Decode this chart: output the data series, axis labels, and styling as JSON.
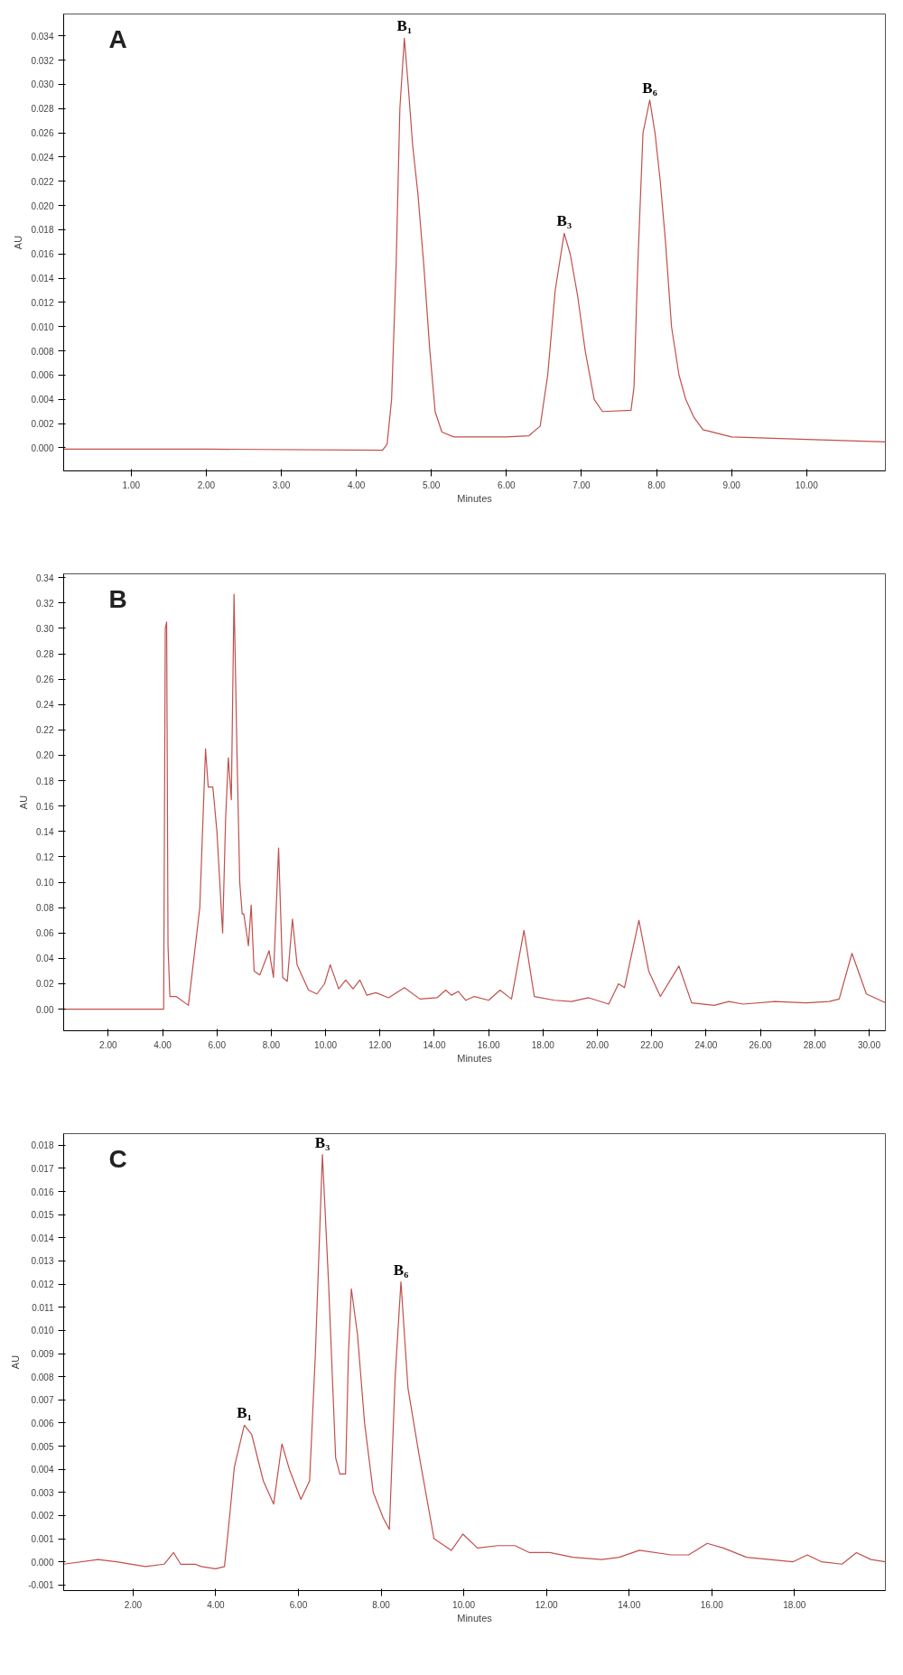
{
  "chart_data": [
    {
      "type": "line",
      "title": "A",
      "xlabel": "Minutes",
      "ylabel": "AU",
      "xlim": [
        0.1,
        11.05
      ],
      "ylim": [
        -0.0019,
        0.0358
      ],
      "xticks": [
        {
          "value": 1,
          "label": "1.00"
        },
        {
          "value": 2,
          "label": "2.00"
        },
        {
          "value": 3,
          "label": "3.00"
        },
        {
          "value": 4,
          "label": "4.00"
        },
        {
          "value": 5,
          "label": "5.00"
        },
        {
          "value": 6,
          "label": "6.00"
        },
        {
          "value": 7,
          "label": "7.00"
        },
        {
          "value": 8,
          "label": "8.00"
        },
        {
          "value": 9,
          "label": "9.00"
        },
        {
          "value": 10,
          "label": "10.00"
        }
      ],
      "yticks": [
        {
          "value": 0,
          "label": "0.000"
        },
        {
          "value": 0.002,
          "label": "0.002"
        },
        {
          "value": 0.004,
          "label": "0.004"
        },
        {
          "value": 0.006,
          "label": "0.006"
        },
        {
          "value": 0.008,
          "label": "0.008"
        },
        {
          "value": 0.01,
          "label": "0.010"
        },
        {
          "value": 0.012,
          "label": "0.012"
        },
        {
          "value": 0.014,
          "label": "0.014"
        },
        {
          "value": 0.016,
          "label": "0.016"
        },
        {
          "value": 0.018,
          "label": "0.018"
        },
        {
          "value": 0.02,
          "label": "0.020"
        },
        {
          "value": 0.022,
          "label": "0.022"
        },
        {
          "value": 0.024,
          "label": "0.024"
        },
        {
          "value": 0.026,
          "label": "0.026"
        },
        {
          "value": 0.028,
          "label": "0.028"
        },
        {
          "value": 0.03,
          "label": "0.030"
        },
        {
          "value": 0.032,
          "label": "0.032"
        },
        {
          "value": 0.034,
          "label": "0.034"
        }
      ],
      "x": [
        0.1,
        2.0,
        4.35,
        4.41,
        4.47,
        4.53,
        4.58,
        4.64,
        4.69,
        4.75,
        4.82,
        4.9,
        4.98,
        5.05,
        5.14,
        5.3,
        6.0,
        6.3,
        6.45,
        6.55,
        6.65,
        6.77,
        6.85,
        6.95,
        7.05,
        7.17,
        7.28,
        7.66,
        7.7,
        7.75,
        7.82,
        7.91,
        7.98,
        8.05,
        8.12,
        8.2,
        8.3,
        8.39,
        8.5,
        8.62,
        9.0,
        10.0,
        11.05
      ],
      "series": [
        {
          "color": "#c0504d",
          "values": [
            -0.0001,
            -0.0001,
            -0.0002,
            0.0003,
            0.004,
            0.015,
            0.028,
            0.0338,
            0.03,
            0.025,
            0.021,
            0.015,
            0.008,
            0.003,
            0.0013,
            0.0009,
            0.0009,
            0.001,
            0.0018,
            0.006,
            0.013,
            0.0177,
            0.016,
            0.0125,
            0.008,
            0.004,
            0.003,
            0.0031,
            0.005,
            0.015,
            0.026,
            0.0287,
            0.026,
            0.022,
            0.017,
            0.01,
            0.006,
            0.004,
            0.0025,
            0.0015,
            0.0009,
            0.0007,
            0.0005
          ]
        }
      ],
      "annotations": [
        {
          "text": "B₁",
          "x": 4.64,
          "y": 0.0338
        },
        {
          "text": "B₃",
          "x": 6.77,
          "y": 0.0177
        },
        {
          "text": "B₆",
          "x": 7.91,
          "y": 0.0287
        }
      ]
    },
    {
      "type": "line",
      "title": "B",
      "xlabel": "Minutes",
      "ylabel": "AU",
      "xlim": [
        0.36,
        30.6
      ],
      "ylim": [
        -0.017,
        0.343
      ],
      "xticks": [
        {
          "value": 2,
          "label": "2.00"
        },
        {
          "value": 4,
          "label": "4.00"
        },
        {
          "value": 6,
          "label": "6.00"
        },
        {
          "value": 8,
          "label": "8.00"
        },
        {
          "value": 10,
          "label": "10.00"
        },
        {
          "value": 12,
          "label": "12.00"
        },
        {
          "value": 14,
          "label": "14.00"
        },
        {
          "value": 16,
          "label": "16.00"
        },
        {
          "value": 18,
          "label": "18.00"
        },
        {
          "value": 20,
          "label": "20.00"
        },
        {
          "value": 22,
          "label": "22.00"
        },
        {
          "value": 24,
          "label": "24.00"
        },
        {
          "value": 26,
          "label": "26.00"
        },
        {
          "value": 28,
          "label": "28.00"
        },
        {
          "value": 30,
          "label": "30.00"
        }
      ],
      "yticks": [
        {
          "value": 0,
          "label": "0.00"
        },
        {
          "value": 0.02,
          "label": "0.02"
        },
        {
          "value": 0.04,
          "label": "0.04"
        },
        {
          "value": 0.06,
          "label": "0.06"
        },
        {
          "value": 0.08,
          "label": "0.08"
        },
        {
          "value": 0.1,
          "label": "0.10"
        },
        {
          "value": 0.12,
          "label": "0.12"
        },
        {
          "value": 0.14,
          "label": "0.14"
        },
        {
          "value": 0.16,
          "label": "0.16"
        },
        {
          "value": 0.18,
          "label": "0.18"
        },
        {
          "value": 0.2,
          "label": "0.20"
        },
        {
          "value": 0.22,
          "label": "0.22"
        },
        {
          "value": 0.24,
          "label": "0.24"
        },
        {
          "value": 0.26,
          "label": "0.26"
        },
        {
          "value": 0.28,
          "label": "0.28"
        },
        {
          "value": 0.3,
          "label": "0.30"
        },
        {
          "value": 0.32,
          "label": "0.32"
        },
        {
          "value": 0.34,
          "label": "0.34"
        }
      ],
      "x": [
        0.36,
        4.04,
        4.1,
        4.15,
        4.2,
        4.27,
        4.5,
        4.95,
        5.37,
        5.58,
        5.68,
        5.85,
        6.0,
        6.21,
        6.32,
        6.42,
        6.53,
        6.63,
        6.74,
        6.84,
        6.93,
        6.99,
        7.16,
        7.26,
        7.37,
        7.58,
        7.92,
        8.08,
        8.27,
        8.42,
        8.59,
        8.78,
        8.95,
        9.37,
        9.68,
        9.96,
        10.17,
        10.48,
        10.74,
        11.01,
        11.26,
        11.52,
        11.85,
        12.32,
        12.9,
        13.47,
        14.1,
        14.42,
        14.63,
        14.88,
        15.16,
        15.47,
        16.0,
        16.42,
        16.84,
        17.3,
        17.68,
        18.42,
        19.05,
        19.68,
        20.42,
        20.78,
        21.0,
        21.53,
        21.89,
        22.32,
        23.0,
        23.47,
        24.3,
        24.84,
        25.37,
        26.53,
        27.68,
        28.53,
        28.9,
        29.37,
        29.9,
        30.6
      ],
      "series": [
        {
          "color": "#c0504d",
          "values": [
            0,
            0,
            0.3,
            0.305,
            0.05,
            0.01,
            0.01,
            0.003,
            0.08,
            0.205,
            0.175,
            0.175,
            0.14,
            0.06,
            0.15,
            0.198,
            0.165,
            0.327,
            0.2,
            0.1,
            0.075,
            0.075,
            0.05,
            0.082,
            0.03,
            0.027,
            0.046,
            0.025,
            0.127,
            0.025,
            0.022,
            0.071,
            0.035,
            0.015,
            0.012,
            0.02,
            0.035,
            0.016,
            0.023,
            0.016,
            0.023,
            0.011,
            0.013,
            0.009,
            0.017,
            0.008,
            0.009,
            0.015,
            0.011,
            0.014,
            0.007,
            0.01,
            0.007,
            0.015,
            0.008,
            0.062,
            0.01,
            0.007,
            0.006,
            0.009,
            0.004,
            0.02,
            0.017,
            0.07,
            0.03,
            0.01,
            0.034,
            0.005,
            0.003,
            0.006,
            0.004,
            0.006,
            0.005,
            0.006,
            0.008,
            0.044,
            0.012,
            0.005
          ]
        }
      ]
    },
    {
      "type": "line",
      "title": "C",
      "xlabel": "Minutes",
      "ylabel": "AU",
      "xlim": [
        0.32,
        20.2
      ],
      "ylim": [
        -0.00124,
        0.0185
      ],
      "xticks": [
        {
          "value": 2,
          "label": "2.00"
        },
        {
          "value": 4,
          "label": "4.00"
        },
        {
          "value": 6,
          "label": "6.00"
        },
        {
          "value": 8,
          "label": "8.00"
        },
        {
          "value": 10,
          "label": "10.00"
        },
        {
          "value": 12,
          "label": "12.00"
        },
        {
          "value": 14,
          "label": "14.00"
        },
        {
          "value": 16,
          "label": "16.00"
        },
        {
          "value": 18,
          "label": "18.00"
        }
      ],
      "yticks": [
        {
          "value": -0.001,
          "label": "-0.001"
        },
        {
          "value": 0,
          "label": "0.000"
        },
        {
          "value": 0.001,
          "label": "0.001"
        },
        {
          "value": 0.002,
          "label": "0.002"
        },
        {
          "value": 0.003,
          "label": "0.003"
        },
        {
          "value": 0.004,
          "label": "0.004"
        },
        {
          "value": 0.005,
          "label": "0.005"
        },
        {
          "value": 0.006,
          "label": "0.006"
        },
        {
          "value": 0.007,
          "label": "0.007"
        },
        {
          "value": 0.008,
          "label": "0.008"
        },
        {
          "value": 0.009,
          "label": "0.009"
        },
        {
          "value": 0.01,
          "label": "0.010"
        },
        {
          "value": 0.011,
          "label": "0.011"
        },
        {
          "value": 0.012,
          "label": "0.012"
        },
        {
          "value": 0.013,
          "label": "0.013"
        },
        {
          "value": 0.014,
          "label": "0.014"
        },
        {
          "value": 0.015,
          "label": "0.015"
        },
        {
          "value": 0.016,
          "label": "0.016"
        },
        {
          "value": 0.017,
          "label": "0.017"
        },
        {
          "value": 0.018,
          "label": "0.018"
        }
      ],
      "x": [
        0.32,
        1.15,
        1.6,
        2.3,
        2.75,
        2.98,
        3.15,
        3.5,
        3.65,
        4.0,
        4.21,
        4.31,
        4.45,
        4.69,
        4.87,
        5.15,
        5.4,
        5.6,
        5.78,
        6.06,
        6.27,
        6.41,
        6.58,
        6.73,
        6.9,
        7.0,
        7.14,
        7.21,
        7.28,
        7.43,
        7.6,
        7.81,
        8.05,
        8.2,
        8.34,
        8.48,
        8.65,
        8.93,
        9.28,
        9.7,
        9.98,
        10.33,
        10.82,
        11.24,
        11.59,
        12.08,
        12.64,
        13.34,
        13.76,
        14.25,
        15.02,
        15.44,
        15.89,
        16.28,
        16.84,
        17.4,
        17.96,
        18.31,
        18.66,
        19.15,
        19.5,
        19.85,
        20.2
      ],
      "series": [
        {
          "color": "#c0504d",
          "values": [
            -0.0001,
            0.0001,
            0,
            -0.0002,
            -0.0001,
            0.0004,
            -0.0001,
            -0.0001,
            -0.0002,
            -0.0003,
            -0.0002,
            0.0015,
            0.0041,
            0.0059,
            0.0055,
            0.0035,
            0.0025,
            0.0051,
            0.004,
            0.0027,
            0.0035,
            0.009,
            0.0176,
            0.012,
            0.0045,
            0.0038,
            0.0038,
            0.009,
            0.0118,
            0.0098,
            0.006,
            0.003,
            0.0019,
            0.0014,
            0.008,
            0.0121,
            0.0075,
            0.0045,
            0.001,
            0.0005,
            0.0012,
            0.0006,
            0.0007,
            0.0007,
            0.0004,
            0.0004,
            0.0002,
            0.0001,
            0.0002,
            0.0005,
            0.0003,
            0.0003,
            0.0008,
            0.0006,
            0.0002,
            0.0001,
            0,
            0.0003,
            0,
            -0.0001,
            0.0004,
            0.0001,
            0
          ]
        }
      ],
      "annotations": [
        {
          "text": "B₁",
          "x": 4.69,
          "y": 0.0059
        },
        {
          "text": "B₃",
          "x": 6.58,
          "y": 0.0176
        },
        {
          "text": "B₆",
          "x": 8.48,
          "y": 0.0121
        }
      ]
    }
  ]
}
